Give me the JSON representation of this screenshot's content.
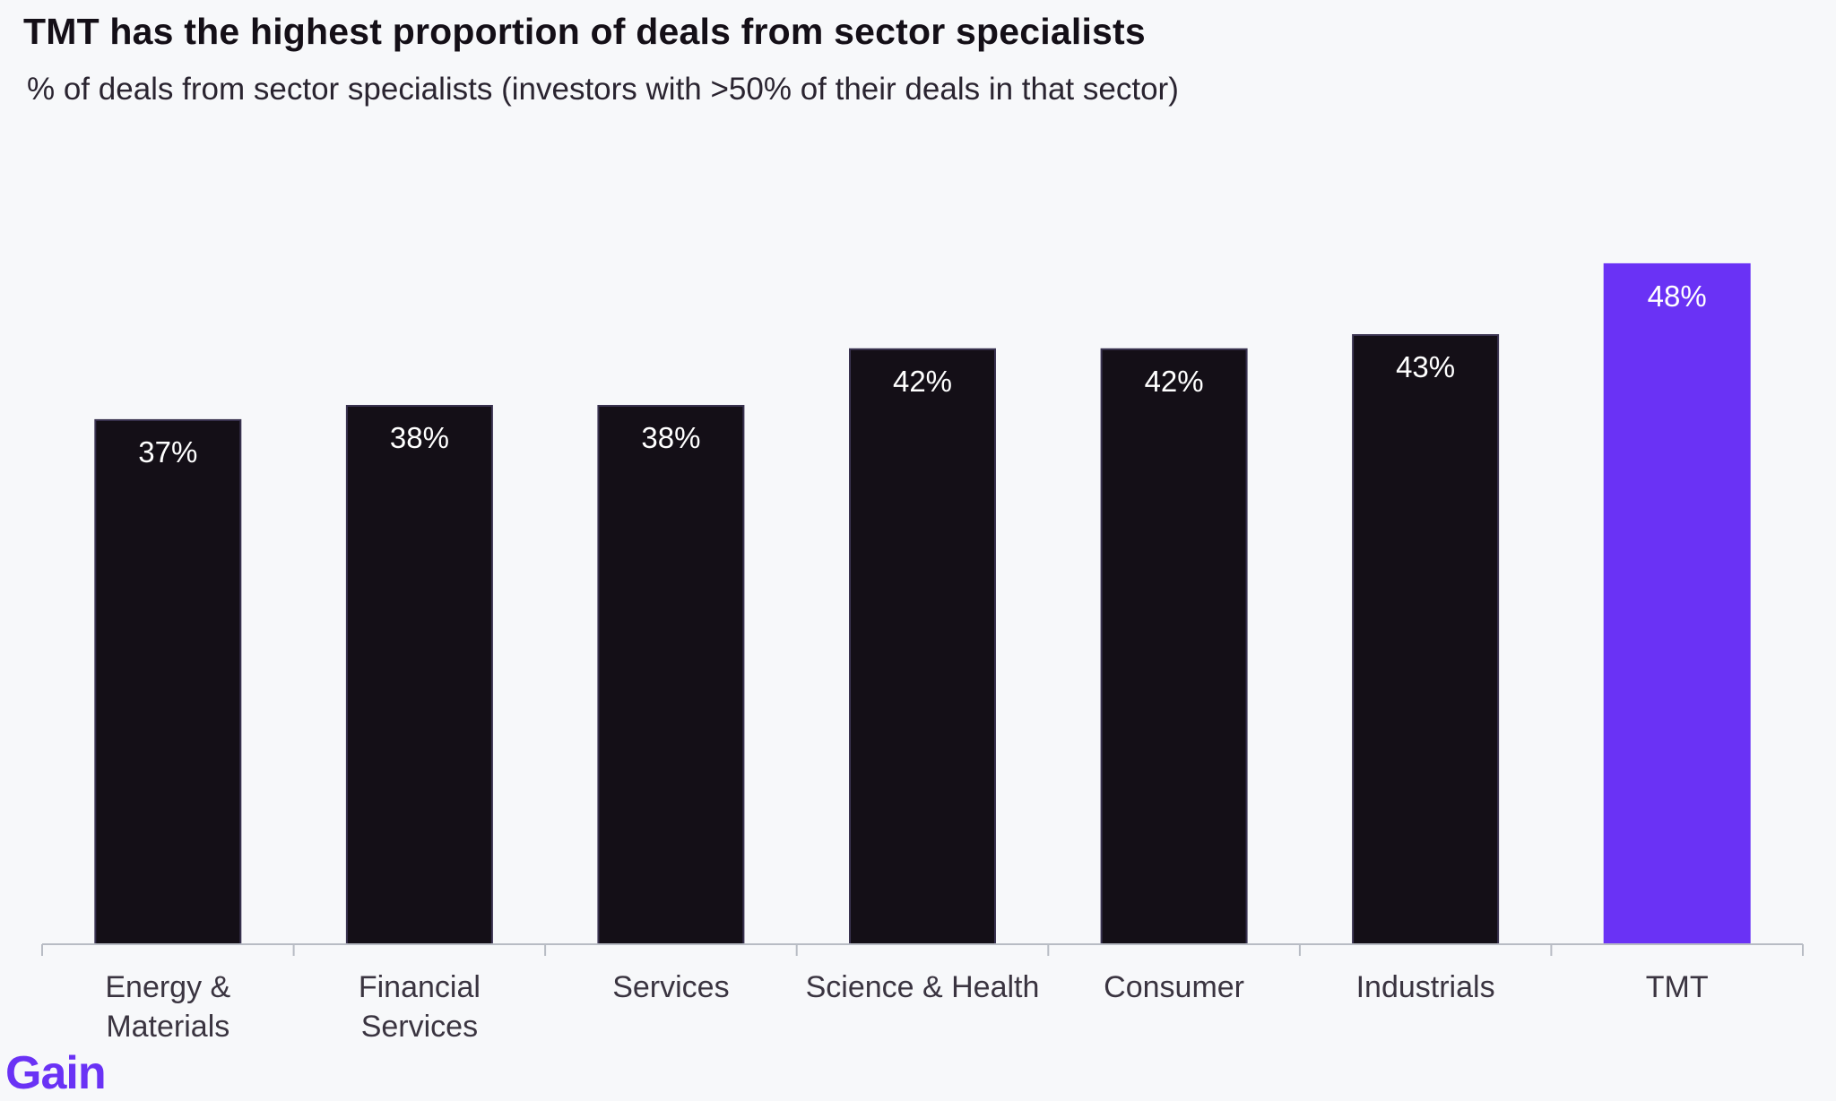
{
  "header": {
    "title": "TMT has the highest proportion of deals from sector specialists",
    "subtitle": "% of deals from sector specialists (investors with >50% of their deals in that sector)"
  },
  "brand": {
    "logo_text": "Gain",
    "accent_color": "#6a32f5",
    "bar_color": "#140f17",
    "axis_color": "#b8bcc4"
  },
  "chart_data": {
    "type": "bar",
    "title": "TMT has the highest proportion of deals from sector specialists",
    "subtitle": "% of deals from sector specialists (investors with >50% of their deals in that sector)",
    "xlabel": "",
    "ylabel": "",
    "categories": [
      [
        "Energy &",
        "Materials"
      ],
      [
        "Financial",
        "Services"
      ],
      [
        "Services"
      ],
      [
        "Science & Health"
      ],
      [
        "Consumer"
      ],
      [
        "Industrials"
      ],
      [
        "TMT"
      ]
    ],
    "values": [
      37,
      38,
      38,
      42,
      42,
      43,
      48
    ],
    "data_labels": [
      "37%",
      "38%",
      "38%",
      "42%",
      "42%",
      "43%",
      "48%"
    ],
    "highlight_index": 6,
    "ylim": [
      0,
      54
    ],
    "grid": false,
    "legend": "none"
  }
}
